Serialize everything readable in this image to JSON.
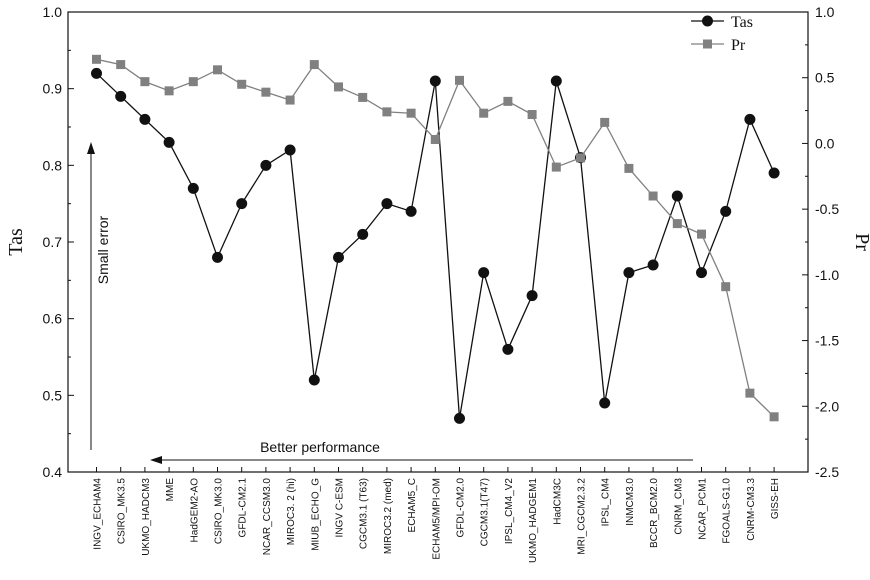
{
  "chart_data": {
    "type": "line",
    "categories": [
      "INGV_ECHAM4",
      "CSIRO_MK3.5",
      "UKMO_HADCM3",
      "MME",
      "HadGEM2-AO",
      "CSIRO_MK3.0",
      "GFDL-CM2.1",
      "NCAR_CCSM3.0",
      "MIROC3. 2 (hi)",
      "MIUB_ECHO_G",
      "INGV C-ESM",
      "CGCM3.1 (T63)",
      "MIROC3.2 (med)",
      "ECHAM5_C",
      "ECHAM5/MPI-OM",
      "GFDL-CM2.0",
      "CGCM3.1(T47)",
      "IPSL_CM4_V2",
      "UKMO_HADGEM1",
      "HadCM3C",
      "MRI_CGCM2.3.2",
      "IPSL_CM4",
      "INMCM3.0",
      "BCCR_BCM2.0",
      "CNRM_CM3",
      "NCAR_PCM1",
      "FGOALS-G1.0",
      "CNRM-CM3.3",
      "GISS-EH"
    ],
    "series": [
      {
        "name": "Tas",
        "axis": "left",
        "marker": "circle",
        "color": "#111111",
        "values": [
          0.92,
          0.89,
          0.86,
          0.83,
          0.77,
          0.68,
          0.75,
          0.8,
          0.82,
          0.52,
          0.68,
          0.71,
          0.75,
          0.74,
          0.91,
          0.47,
          0.66,
          0.56,
          0.63,
          0.91,
          0.81,
          0.49,
          0.66,
          0.67,
          0.76,
          0.66,
          0.74,
          0.86,
          0.79
        ]
      },
      {
        "name": "Pr",
        "axis": "right",
        "marker": "square",
        "color": "#808080",
        "values": [
          0.64,
          0.6,
          0.47,
          0.4,
          0.47,
          0.56,
          0.45,
          0.39,
          0.33,
          0.6,
          0.43,
          0.35,
          0.24,
          0.23,
          0.03,
          0.48,
          0.23,
          0.32,
          0.22,
          -0.18,
          -0.11,
          0.16,
          -0.19,
          -0.4,
          -0.61,
          -0.69,
          -1.09,
          -1.9,
          -2.08
        ]
      }
    ],
    "ylabel_left": "Tas",
    "ylabel_right": "Pr",
    "ylim_left": [
      0.4,
      1.0
    ],
    "ylim_right": [
      -2.5,
      1.0
    ],
    "yticks_left": [
      "0.4",
      "0.5",
      "0.6",
      "0.7",
      "0.8",
      "0.9",
      "1.0"
    ],
    "yticks_right": [
      "-2.5",
      "-2.0",
      "-1.5",
      "-1.0",
      "-0.5",
      "0.0",
      "0.5",
      "1.0"
    ],
    "legend": {
      "position": "top-right",
      "entries": [
        "Tas",
        "Pr"
      ]
    },
    "annotations": {
      "vertical": "Small error",
      "horizontal": "Better performance"
    },
    "grid": false
  }
}
